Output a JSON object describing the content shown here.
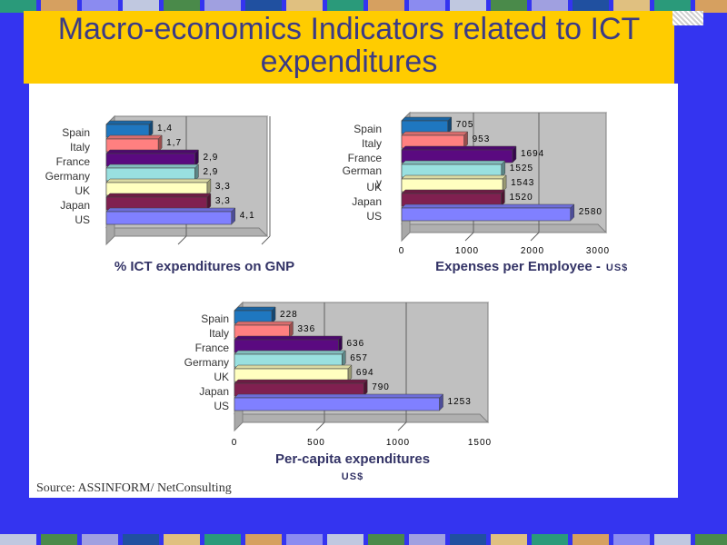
{
  "slide": {
    "title": "Macro-economics Indicators related to ICT expenditures",
    "source": "Source: ASSINFORM/ NetConsulting",
    "colors": {
      "background": "#3434f0",
      "title_bar": "#ffcc00",
      "title_text": "#3b3b86"
    }
  },
  "chart_data": [
    {
      "type": "bar",
      "orientation": "horizontal",
      "title": "% ICT expenditures on GNP",
      "unit": "",
      "categories": [
        "Spain",
        "Italy",
        "France",
        "Germany",
        "UK",
        "Japan",
        "US"
      ],
      "values": [
        1.4,
        1.7,
        2.9,
        2.9,
        3.3,
        3.3,
        4.1
      ],
      "value_labels": [
        "1,4",
        "1,7",
        "2,9",
        "2,9",
        "3,3",
        "3,3",
        "4,1"
      ],
      "xlim": [
        0,
        5
      ],
      "show_ticks": false,
      "tick_labels": [],
      "colors": [
        "#1f77c0",
        "#ff8080",
        "#5a0a80",
        "#99e0e0",
        "#ffffc0",
        "#802050",
        "#8080ff"
      ]
    },
    {
      "type": "bar",
      "orientation": "horizontal",
      "title": "Expenses per Employee -",
      "unit": "US$",
      "categories": [
        "Spain",
        "Italy",
        "France",
        "German y",
        "UK",
        "Japan",
        "US"
      ],
      "values": [
        705,
        953,
        1694,
        1525,
        1543,
        1520,
        2580
      ],
      "value_labels": [
        "705",
        "953",
        "1694",
        "1525",
        "1543",
        "1520",
        "2580"
      ],
      "xlim": [
        0,
        3000
      ],
      "show_ticks": true,
      "tick_labels": [
        "0",
        "1000",
        "2000",
        "3000"
      ],
      "colors": [
        "#1f77c0",
        "#ff8080",
        "#5a0a80",
        "#99e0e0",
        "#ffffc0",
        "#802050",
        "#8080ff"
      ]
    },
    {
      "type": "bar",
      "orientation": "horizontal",
      "title": "Per-capita expenditures",
      "unit": "US$",
      "categories": [
        "Spain",
        "Italy",
        "France",
        "Germany",
        "UK",
        "Japan",
        "US"
      ],
      "values": [
        228,
        336,
        636,
        657,
        694,
        790,
        1253
      ],
      "value_labels": [
        "228",
        "336",
        "636",
        "657",
        "694",
        "790",
        "1253"
      ],
      "xlim": [
        0,
        1500
      ],
      "show_ticks": true,
      "tick_labels": [
        "0",
        "500",
        "1000",
        "1500"
      ],
      "colors": [
        "#1f77c0",
        "#ff8080",
        "#5a0a80",
        "#99e0e0",
        "#ffffc0",
        "#802050",
        "#8080ff"
      ]
    }
  ]
}
